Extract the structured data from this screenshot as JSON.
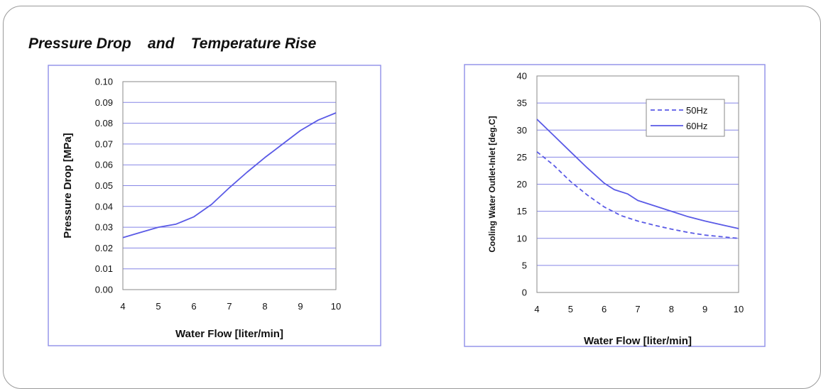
{
  "page_title": "Pressure Drop    and    Temperature Rise",
  "chart_data": [
    {
      "type": "line",
      "title": "",
      "xlabel": "Water Flow  [liter/min]",
      "ylabel": "Pressure Drop  [MPa]",
      "xlim": [
        4,
        10
      ],
      "ylim": [
        0,
        0.1
      ],
      "x_ticks": [
        "4",
        "5",
        "6",
        "7",
        "8",
        "9",
        "10"
      ],
      "y_ticks": [
        "0.00",
        "0.01",
        "0.02",
        "0.03",
        "0.04",
        "0.05",
        "0.06",
        "0.07",
        "0.08",
        "0.09",
        "0.10"
      ],
      "grid": "horizontal",
      "legend": "none",
      "series": [
        {
          "name": "",
          "style": "solid",
          "color": "#5a5ae6",
          "x": [
            4,
            4.5,
            5,
            5.5,
            6,
            6.5,
            7,
            7.5,
            8,
            8.5,
            9,
            9.5,
            10
          ],
          "y": [
            0.025,
            0.0275,
            0.03,
            0.0315,
            0.035,
            0.041,
            0.049,
            0.0565,
            0.0635,
            0.07,
            0.0765,
            0.0815,
            0.085
          ]
        }
      ]
    },
    {
      "type": "line",
      "title": "",
      "xlabel": "Water Flow  [liter/min]",
      "ylabel": "Cooling Water Outlet-Inlet  [deg.C]",
      "xlim": [
        4,
        10
      ],
      "ylim": [
        0,
        40
      ],
      "x_ticks": [
        "4",
        "5",
        "6",
        "7",
        "8",
        "9",
        "10"
      ],
      "y_ticks": [
        "0",
        "5",
        "10",
        "15",
        "20",
        "25",
        "30",
        "35",
        "40"
      ],
      "grid": "horizontal",
      "legend": "top-right",
      "series": [
        {
          "name": "50Hz",
          "style": "dashed",
          "color": "#5a5ae6",
          "x": [
            4,
            4.5,
            5,
            5.5,
            6,
            6.5,
            7,
            7.5,
            8,
            8.5,
            9,
            9.5,
            10
          ],
          "y": [
            26,
            23.5,
            20.5,
            18,
            15.8,
            14.2,
            13.2,
            12.4,
            11.7,
            11.1,
            10.6,
            10.3,
            10
          ]
        },
        {
          "name": "60Hz",
          "style": "solid",
          "color": "#5a5ae6",
          "x": [
            4,
            4.5,
            5,
            5.5,
            6,
            6.3,
            6.7,
            7,
            7.5,
            8,
            8.5,
            9,
            9.5,
            10
          ],
          "y": [
            32,
            29,
            26,
            23,
            20.2,
            19,
            18.2,
            17,
            16,
            15,
            14,
            13.2,
            12.5,
            11.8
          ]
        }
      ]
    }
  ]
}
